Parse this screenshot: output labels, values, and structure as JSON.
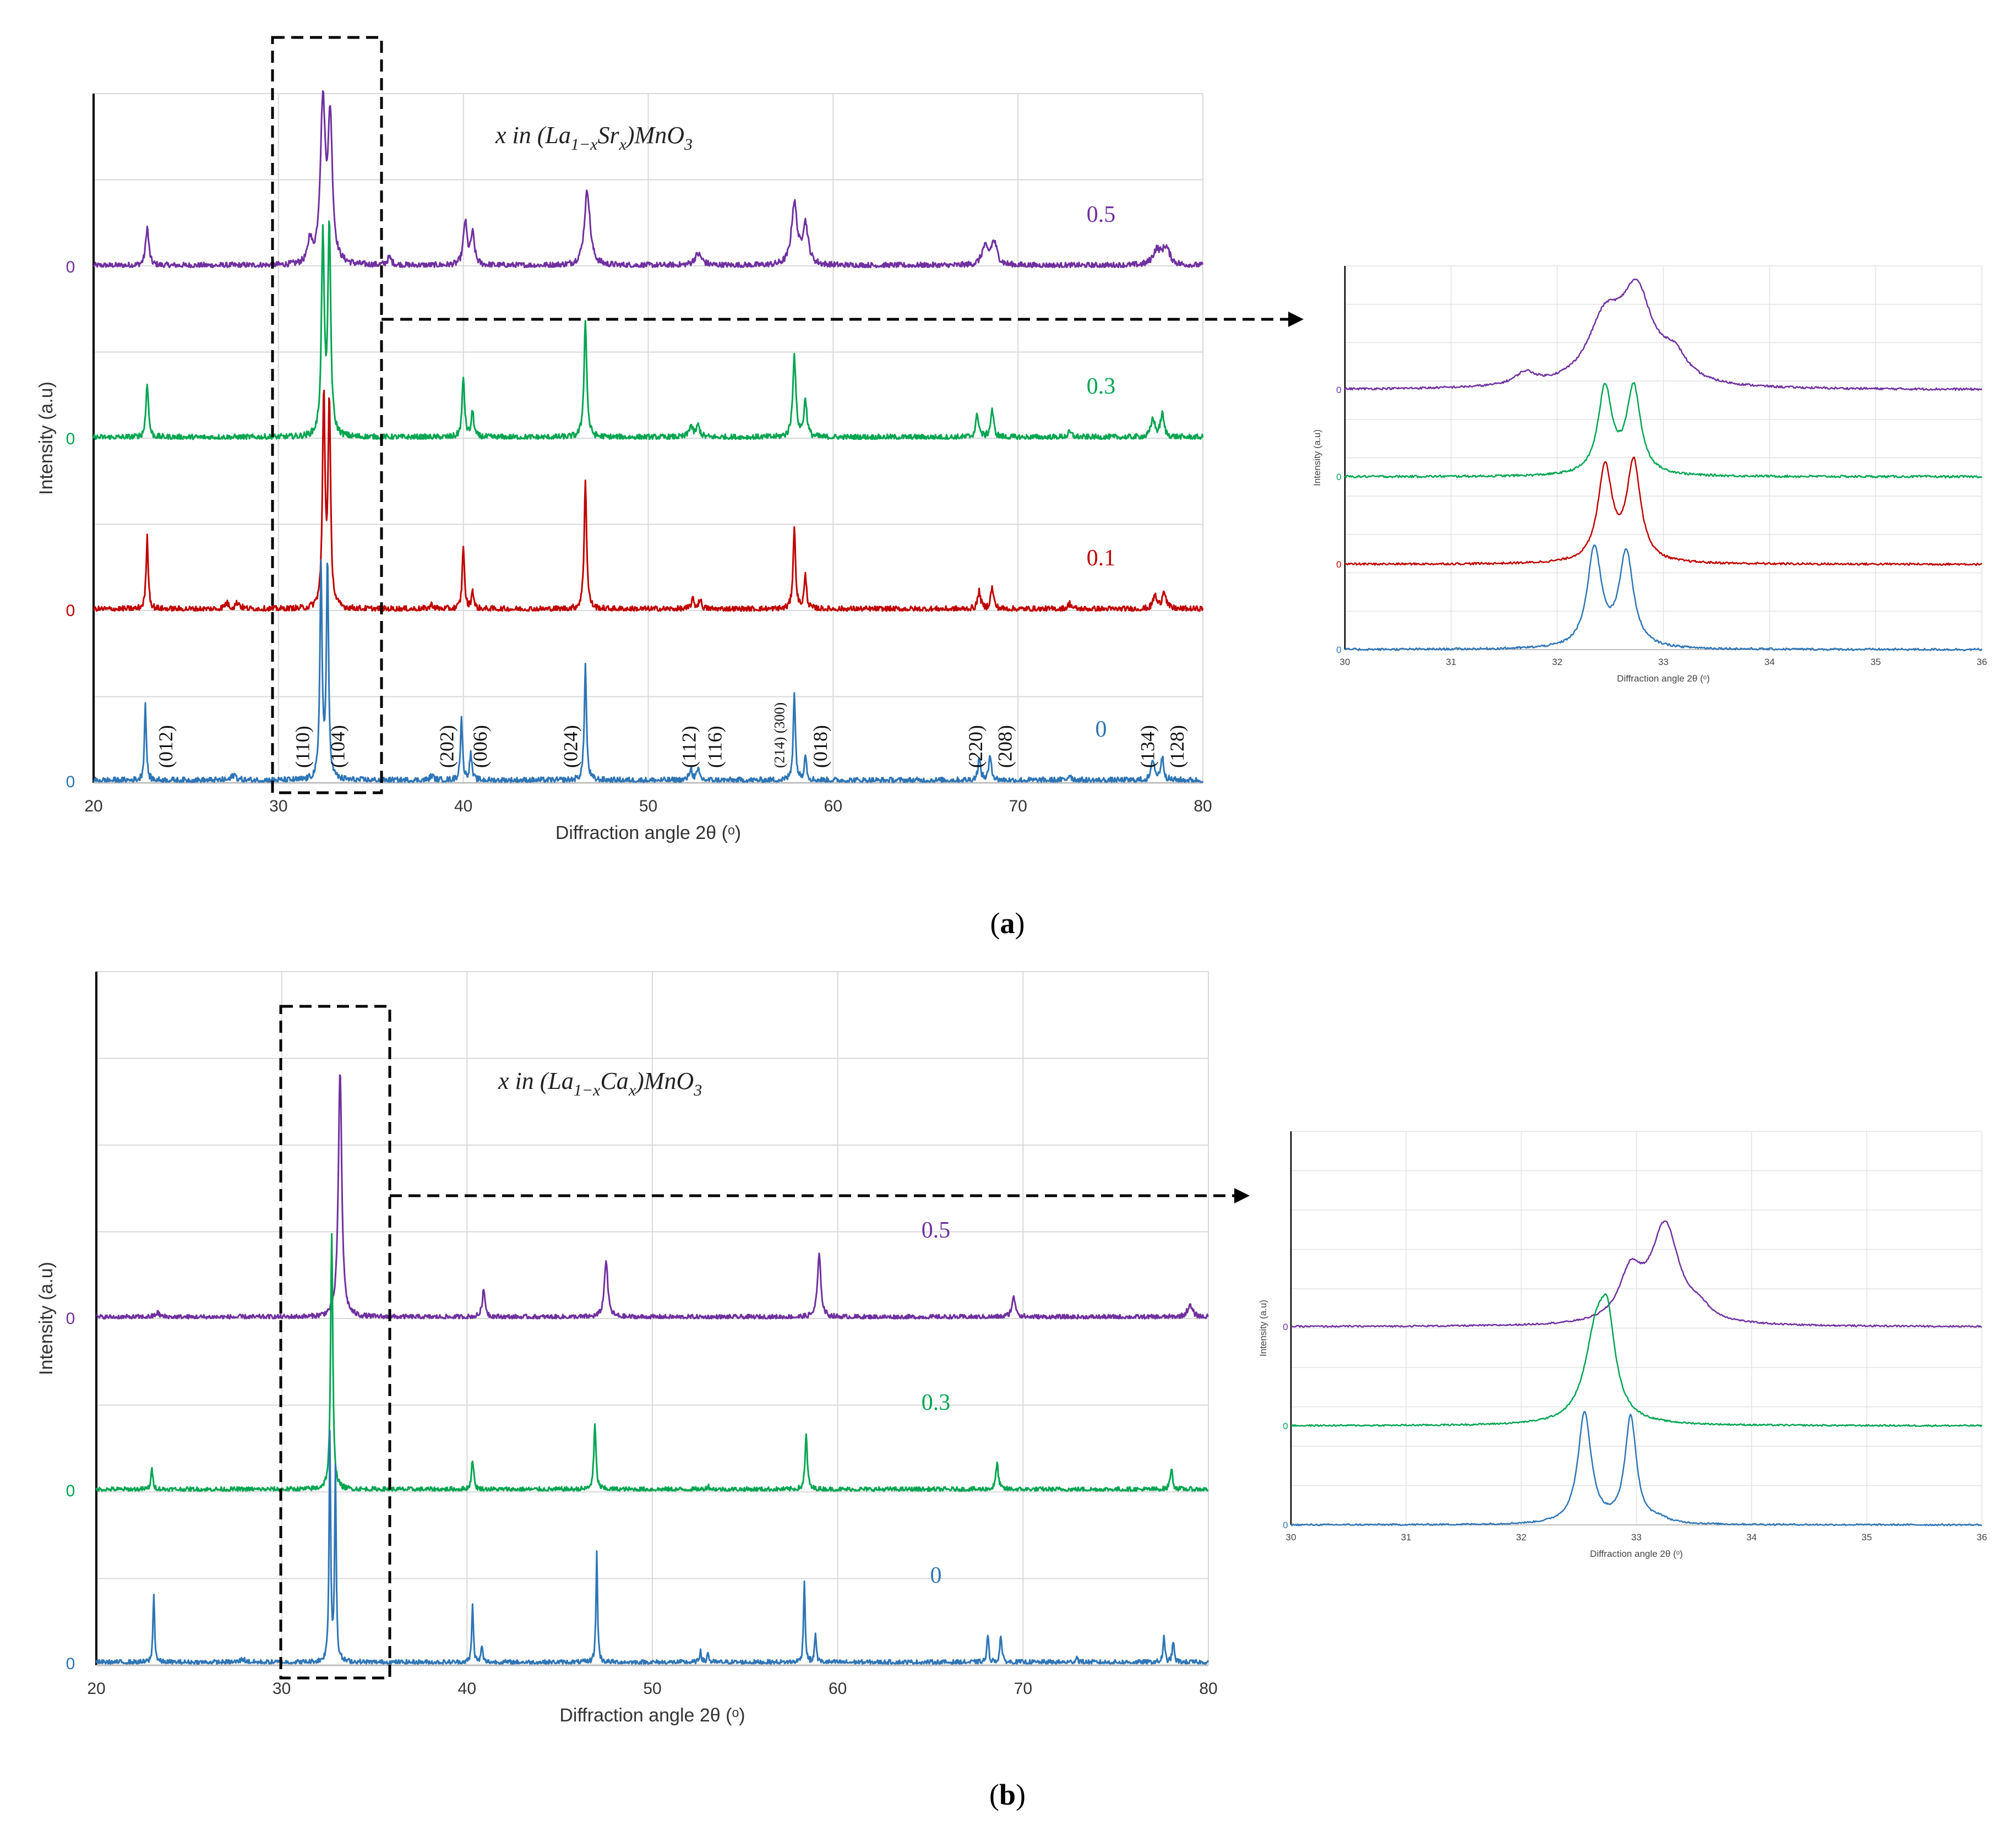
{
  "chart_data": [
    {
      "type": "line",
      "panel": "a",
      "title": "x in (La1−xSrx)MnO3",
      "title_parts": {
        "pre": "x in (La",
        "sub1": "1−x",
        "mid": "Sr",
        "sub2": "x",
        "post": ")MnO",
        "sub3": "3"
      },
      "xlabel": "Diffraction angle 2θ (ᵒ)",
      "ylabel": "Intensity (a.u)",
      "xlim": [
        20,
        80
      ],
      "xticks": [
        "20",
        "30",
        "40",
        "50",
        "60",
        "70",
        "80"
      ],
      "grid": true,
      "series": [
        {
          "name": "0.5",
          "color": "#7030a0",
          "baseline_label": "0",
          "peaks": [
            [
              22.9,
              0.4,
              0.1
            ],
            [
              31.7,
              0.24,
              0.12
            ],
            [
              32.4,
              1.65,
              0.16
            ],
            [
              32.8,
              1.45,
              0.14
            ],
            [
              36.0,
              0.08,
              0.15
            ],
            [
              40.1,
              0.45,
              0.12
            ],
            [
              40.5,
              0.32,
              0.12
            ],
            [
              46.7,
              0.78,
              0.18
            ],
            [
              52.7,
              0.12,
              0.25
            ],
            [
              57.9,
              0.64,
              0.18
            ],
            [
              58.5,
              0.42,
              0.18
            ],
            [
              68.2,
              0.18,
              0.2
            ],
            [
              68.7,
              0.24,
              0.2
            ],
            [
              77.5,
              0.15,
              0.25
            ],
            [
              78.0,
              0.18,
              0.25
            ]
          ]
        },
        {
          "name": "0.3",
          "color": "#00a550",
          "baseline_label": "0",
          "peaks": [
            [
              22.9,
              0.58,
              0.08
            ],
            [
              32.4,
              2.05,
              0.09
            ],
            [
              32.75,
              2.15,
              0.09
            ],
            [
              40.0,
              0.62,
              0.08
            ],
            [
              40.5,
              0.27,
              0.08
            ],
            [
              46.6,
              1.2,
              0.09
            ],
            [
              52.3,
              0.12,
              0.12
            ],
            [
              52.7,
              0.12,
              0.12
            ],
            [
              57.9,
              0.85,
              0.1
            ],
            [
              58.5,
              0.38,
              0.1
            ],
            [
              67.8,
              0.24,
              0.1
            ],
            [
              68.6,
              0.28,
              0.1
            ],
            [
              72.8,
              0.05,
              0.15
            ],
            [
              77.3,
              0.2,
              0.12
            ],
            [
              77.8,
              0.24,
              0.12
            ]
          ]
        },
        {
          "name": "0.1",
          "color": "#c00000",
          "baseline_label": "0",
          "peaks": [
            [
              22.9,
              0.75,
              0.07
            ],
            [
              27.2,
              0.06,
              0.15
            ],
            [
              27.8,
              0.07,
              0.15
            ],
            [
              32.45,
              2.2,
              0.08
            ],
            [
              32.75,
              2.1,
              0.08
            ],
            [
              38.3,
              0.05,
              0.12
            ],
            [
              40.0,
              0.67,
              0.07
            ],
            [
              40.5,
              0.2,
              0.07
            ],
            [
              46.6,
              1.33,
              0.08
            ],
            [
              52.4,
              0.1,
              0.1
            ],
            [
              52.8,
              0.1,
              0.1
            ],
            [
              57.9,
              0.84,
              0.08
            ],
            [
              58.5,
              0.34,
              0.08
            ],
            [
              67.9,
              0.18,
              0.1
            ],
            [
              68.6,
              0.22,
              0.1
            ],
            [
              72.8,
              0.06,
              0.12
            ],
            [
              77.4,
              0.14,
              0.12
            ],
            [
              77.9,
              0.2,
              0.12
            ]
          ]
        },
        {
          "name": "0",
          "color": "#2e75b6",
          "baseline_label": "0",
          "peaks": [
            [
              22.8,
              0.8,
              0.06
            ],
            [
              27.6,
              0.06,
              0.15
            ],
            [
              32.3,
              2.2,
              0.07
            ],
            [
              32.65,
              2.25,
              0.07
            ],
            [
              38.3,
              0.05,
              0.12
            ],
            [
              39.9,
              0.63,
              0.07
            ],
            [
              40.4,
              0.28,
              0.07
            ],
            [
              46.6,
              1.2,
              0.07
            ],
            [
              52.3,
              0.12,
              0.1
            ],
            [
              52.7,
              0.1,
              0.1
            ],
            [
              57.9,
              0.92,
              0.07
            ],
            [
              58.5,
              0.28,
              0.07
            ],
            [
              67.9,
              0.22,
              0.09
            ],
            [
              68.5,
              0.25,
              0.09
            ],
            [
              72.8,
              0.06,
              0.12
            ],
            [
              77.3,
              0.22,
              0.1
            ],
            [
              77.8,
              0.24,
              0.1
            ]
          ]
        }
      ],
      "hkl_labels": [
        {
          "text": "(012)",
          "x": 23.9
        },
        {
          "text": "(110)",
          "x": 31.3
        },
        {
          "text": "(104)",
          "x": 33.2
        },
        {
          "text": "(202)",
          "x": 39.1
        },
        {
          "text": "(006)",
          "x": 40.9
        },
        {
          "text": "(024)",
          "x": 45.8
        },
        {
          "text": "(112)",
          "x": 52.2
        },
        {
          "text": "(116)",
          "x": 53.6
        },
        {
          "text": "(214) (300)",
          "x": 57.0,
          "small": true
        },
        {
          "text": "(018)",
          "x": 59.3
        },
        {
          "text": "(220)",
          "x": 67.7
        },
        {
          "text": "(208)",
          "x": 69.3
        },
        {
          "text": "(134)",
          "x": 77.0
        },
        {
          "text": "(128)",
          "x": 78.6
        }
      ],
      "inset": {
        "xlabel": "Diffraction angle 2θ (ᵒ)",
        "ylabel": "Intensity (a.u)",
        "xlim": [
          30,
          36
        ],
        "xticks": [
          "30",
          "31",
          "32",
          "33",
          "34",
          "35",
          "36"
        ],
        "series": [
          {
            "name": "0.5",
            "color": "#7030a0",
            "baseline_label": "0",
            "peaks": [
              [
                31.7,
                0.15,
                0.12
              ],
              [
                32.45,
                0.75,
                0.2
              ],
              [
                32.75,
                1.05,
                0.18
              ],
              [
                33.1,
                0.3,
                0.15
              ]
            ]
          },
          {
            "name": "0.3",
            "color": "#00a550",
            "baseline_label": "0",
            "peaks": [
              [
                32.45,
                1.05,
                0.08
              ],
              [
                32.72,
                1.05,
                0.08
              ]
            ]
          },
          {
            "name": "0.1",
            "color": "#c00000",
            "baseline_label": "0",
            "peaks": [
              [
                32.45,
                1.15,
                0.08
              ],
              [
                32.72,
                1.2,
                0.08
              ]
            ]
          },
          {
            "name": "0",
            "color": "#2e75b6",
            "baseline_label": "0",
            "peaks": [
              [
                32.35,
                1.2,
                0.08
              ],
              [
                32.65,
                1.15,
                0.08
              ]
            ]
          }
        ]
      }
    },
    {
      "type": "line",
      "panel": "b",
      "title": "x in (La1−xCax)MnO3",
      "title_parts": {
        "pre": "x in (La",
        "sub1": "1−x",
        "mid": "Ca",
        "sub2": "x",
        "post": ")MnO",
        "sub3": "3"
      },
      "xlabel": "Diffraction angle 2θ (ᵒ)",
      "ylabel": "Intensity (a.u)",
      "xlim": [
        20,
        80
      ],
      "xticks": [
        "20",
        "30",
        "40",
        "50",
        "60",
        "70",
        "80"
      ],
      "grid": true,
      "series": [
        {
          "name": "0.5",
          "color": "#7030a0",
          "baseline_label": "0",
          "peaks": [
            [
              23.3,
              0.05,
              0.15
            ],
            [
              33.15,
              2.8,
              0.11
            ],
            [
              40.9,
              0.3,
              0.1
            ],
            [
              47.5,
              0.65,
              0.11
            ],
            [
              59.0,
              0.7,
              0.11
            ],
            [
              69.5,
              0.22,
              0.13
            ],
            [
              79.0,
              0.13,
              0.18
            ]
          ]
        },
        {
          "name": "0.3",
          "color": "#00a550",
          "baseline_label": "0",
          "peaks": [
            [
              23.0,
              0.22,
              0.07
            ],
            [
              32.7,
              2.9,
              0.07
            ],
            [
              40.3,
              0.35,
              0.07
            ],
            [
              46.9,
              0.73,
              0.07
            ],
            [
              53.0,
              0.04,
              0.1
            ],
            [
              58.3,
              0.62,
              0.07
            ],
            [
              68.6,
              0.3,
              0.08
            ],
            [
              78.0,
              0.24,
              0.08
            ]
          ]
        },
        {
          "name": "0",
          "color": "#2e75b6",
          "baseline_label": "0",
          "peaks": [
            [
              23.1,
              0.8,
              0.05
            ],
            [
              27.9,
              0.04,
              0.15
            ],
            [
              32.6,
              2.6,
              0.05
            ],
            [
              32.9,
              2.2,
              0.05
            ],
            [
              40.3,
              0.68,
              0.05
            ],
            [
              40.8,
              0.2,
              0.05
            ],
            [
              47.0,
              1.25,
              0.05
            ],
            [
              52.6,
              0.15,
              0.05
            ],
            [
              53.0,
              0.12,
              0.05
            ],
            [
              58.2,
              0.95,
              0.05
            ],
            [
              58.8,
              0.35,
              0.05
            ],
            [
              68.1,
              0.3,
              0.06
            ],
            [
              68.8,
              0.32,
              0.06
            ],
            [
              72.9,
              0.06,
              0.08
            ],
            [
              77.6,
              0.28,
              0.06
            ],
            [
              78.1,
              0.24,
              0.06
            ]
          ]
        }
      ],
      "inset": {
        "xlabel": "Diffraction angle 2θ (ᵒ)",
        "ylabel": "Intensity (a.u)",
        "xlim": [
          30,
          36
        ],
        "xticks": [
          "30",
          "31",
          "32",
          "33",
          "34",
          "35",
          "36"
        ],
        "series": [
          {
            "name": "0.5",
            "color": "#7030a0",
            "baseline_label": "0",
            "peaks": [
              [
                32.95,
                0.55,
                0.12
              ],
              [
                33.25,
                1.15,
                0.15
              ],
              [
                33.55,
                0.12,
                0.1
              ]
            ]
          },
          {
            "name": "0.3",
            "color": "#00a550",
            "baseline_label": "0",
            "peaks": [
              [
                32.65,
                1.0,
                0.12
              ],
              [
                32.75,
                0.9,
                0.08
              ]
            ]
          },
          {
            "name": "0",
            "color": "#2e75b6",
            "baseline_label": "0",
            "peaks": [
              [
                32.55,
                1.3,
                0.07
              ],
              [
                32.95,
                1.25,
                0.06
              ],
              [
                33.2,
                0.05,
                0.08
              ]
            ]
          }
        ]
      }
    }
  ],
  "captions": {
    "a_open": "(",
    "a_letter": "a",
    "a_close": ")",
    "b_open": "(",
    "b_letter": "b",
    "b_close": ")"
  }
}
